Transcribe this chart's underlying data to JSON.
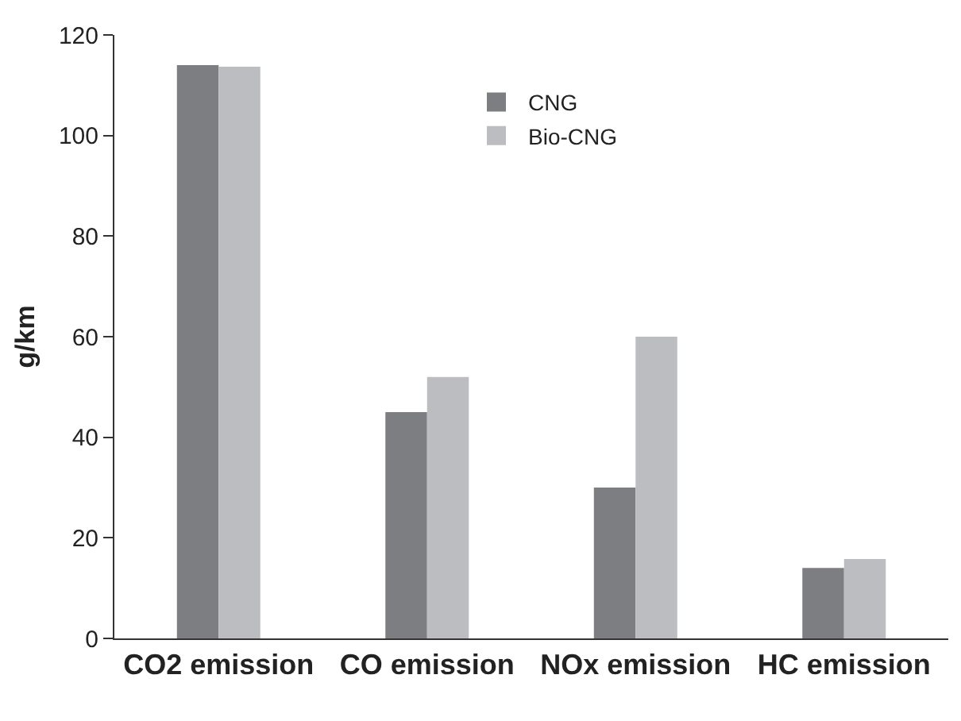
{
  "chart_data": {
    "type": "bar",
    "ylabel": "g/km",
    "categories": [
      "CO2 emission",
      "CO emission",
      "NOx emission",
      "HC emission"
    ],
    "series": [
      {
        "name": "CNG",
        "color": "#7d7e82",
        "values": [
          114,
          45,
          30,
          14
        ]
      },
      {
        "name": "Bio-CNG",
        "color": "#bcbdc1",
        "values": [
          113.7,
          52,
          60,
          15.8
        ]
      }
    ],
    "ylim": [
      0,
      120
    ],
    "yticks": [
      0,
      20,
      40,
      60,
      80,
      100,
      120
    ],
    "grid": false,
    "legend": "top"
  }
}
